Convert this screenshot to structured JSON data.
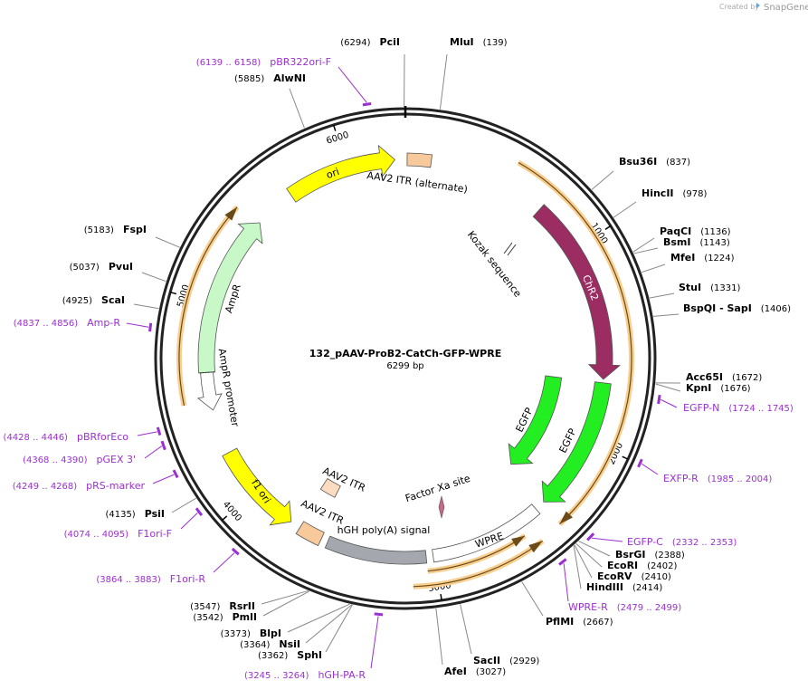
{
  "watermark": {
    "created_by": "Created by",
    "brand": "SnapGene"
  },
  "plasmid": {
    "name": "132_pAAV-ProB2-CatCh-GFP-WPRE",
    "length": {
      "value": 6299,
      "label": "6299 bp"
    }
  },
  "ruler_ticks": [
    1000,
    2000,
    3000,
    4000,
    5000,
    6000
  ],
  "enzymes": [
    {
      "name": "PciI",
      "site": {
        "value": 6294,
        "label": "(6294)"
      }
    },
    {
      "name": "MluI",
      "site": {
        "value": 139,
        "label": "(139)"
      }
    },
    {
      "name": "AlwNI",
      "site": {
        "value": 5885,
        "label": "(5885)"
      }
    },
    {
      "name": "Bsu36I",
      "site": {
        "value": 837,
        "label": "(837)"
      }
    },
    {
      "name": "HincII",
      "site": {
        "value": 978,
        "label": "(978)"
      }
    },
    {
      "name": "PaqCI",
      "site": {
        "value": 1136,
        "label": "(1136)"
      }
    },
    {
      "name": "BsmI",
      "site": {
        "value": 1143,
        "label": "(1143)"
      }
    },
    {
      "name": "MfeI",
      "site": {
        "value": 1224,
        "label": "(1224)"
      }
    },
    {
      "name": "StuI",
      "site": {
        "value": 1331,
        "label": "(1331)"
      }
    },
    {
      "name": "BspQI - SapI",
      "site": {
        "value": 1406,
        "label": "(1406)"
      }
    },
    {
      "name": "Acc65I",
      "site": {
        "value": 1672,
        "label": "(1672)"
      }
    },
    {
      "name": "KpnI",
      "site": {
        "value": 1676,
        "label": "(1676)"
      }
    },
    {
      "name": "BsrGI",
      "site": {
        "value": 2388,
        "label": "(2388)"
      }
    },
    {
      "name": "EcoRI",
      "site": {
        "value": 2402,
        "label": "(2402)"
      }
    },
    {
      "name": "EcoRV",
      "site": {
        "value": 2410,
        "label": "(2410)"
      }
    },
    {
      "name": "HindIII",
      "site": {
        "value": 2414,
        "label": "(2414)"
      }
    },
    {
      "name": "PflMI",
      "site": {
        "value": 2667,
        "label": "(2667)"
      }
    },
    {
      "name": "SacII",
      "site": {
        "value": 2929,
        "label": "(2929)"
      }
    },
    {
      "name": "AfeI",
      "site": {
        "value": 3027,
        "label": "(3027)"
      }
    },
    {
      "name": "RsrII",
      "site": {
        "value": 3547,
        "label": "(3547)"
      }
    },
    {
      "name": "PmlI",
      "site": {
        "value": 3542,
        "label": "(3542)"
      }
    },
    {
      "name": "BlpI",
      "site": {
        "value": 3373,
        "label": "(3373)"
      }
    },
    {
      "name": "NsiI",
      "site": {
        "value": 3364,
        "label": "(3364)"
      }
    },
    {
      "name": "SphI",
      "site": {
        "value": 3362,
        "label": "(3362)"
      }
    },
    {
      "name": "PsiI",
      "site": {
        "value": 4135,
        "label": "(4135)"
      }
    },
    {
      "name": "ScaI",
      "site": {
        "value": 4925,
        "label": "(4925)"
      }
    },
    {
      "name": "PvuI",
      "site": {
        "value": 5037,
        "label": "(5037)"
      }
    },
    {
      "name": "FspI",
      "site": {
        "value": 5183,
        "label": "(5183)"
      }
    }
  ],
  "primers": [
    {
      "name": "pBR322ori-F",
      "start": 6139,
      "end": 6158,
      "range_label": "(6139 .. 6158)"
    },
    {
      "name": "Amp-R",
      "start": 4837,
      "end": 4856,
      "range_label": "(4837 .. 4856)"
    },
    {
      "name": "EGFP-N",
      "start": 1724,
      "end": 1745,
      "range_label": "(1724 .. 1745)"
    },
    {
      "name": "EXFP-R",
      "start": 1985,
      "end": 2004,
      "range_label": "(1985 .. 2004)"
    },
    {
      "name": "EGFP-C",
      "start": 2332,
      "end": 2353,
      "range_label": "(2332 .. 2353)"
    },
    {
      "name": "WPRE-R",
      "start": 2479,
      "end": 2499,
      "range_label": "(2479 .. 2499)"
    },
    {
      "name": "hGH-PA-R",
      "start": 3245,
      "end": 3264,
      "range_label": "(3245 .. 3264)"
    },
    {
      "name": "F1ori-R",
      "start": 3864,
      "end": 3883,
      "range_label": "(3864 .. 3883)"
    },
    {
      "name": "F1ori-F",
      "start": 4074,
      "end": 4095,
      "range_label": "(4074 .. 4095)"
    },
    {
      "name": "pRS-marker",
      "start": 4249,
      "end": 4268,
      "range_label": "(4249 .. 4268)"
    },
    {
      "name": "pGEX 3'",
      "start": 4368,
      "end": 4390,
      "range_label": "(4368 .. 4390)"
    },
    {
      "name": "pBRforEco",
      "start": 4428,
      "end": 4446,
      "range_label": "(4428 .. 4446)"
    }
  ],
  "features": [
    {
      "label": "ori"
    },
    {
      "label": "AAV2 ITR (alternate)"
    },
    {
      "label": "Kozak sequence"
    },
    {
      "label": "ChR2"
    },
    {
      "label": "EGFP"
    },
    {
      "label": "EGFP"
    },
    {
      "label": "Factor Xa site"
    },
    {
      "label": "WPRE"
    },
    {
      "label": "hGH poly(A) signal"
    },
    {
      "label": "AAV2 ITR"
    },
    {
      "label": "AAV2 ITR"
    },
    {
      "label": "f1 ori"
    },
    {
      "label": "AmpR"
    },
    {
      "label": "AmpR promoter"
    }
  ]
}
